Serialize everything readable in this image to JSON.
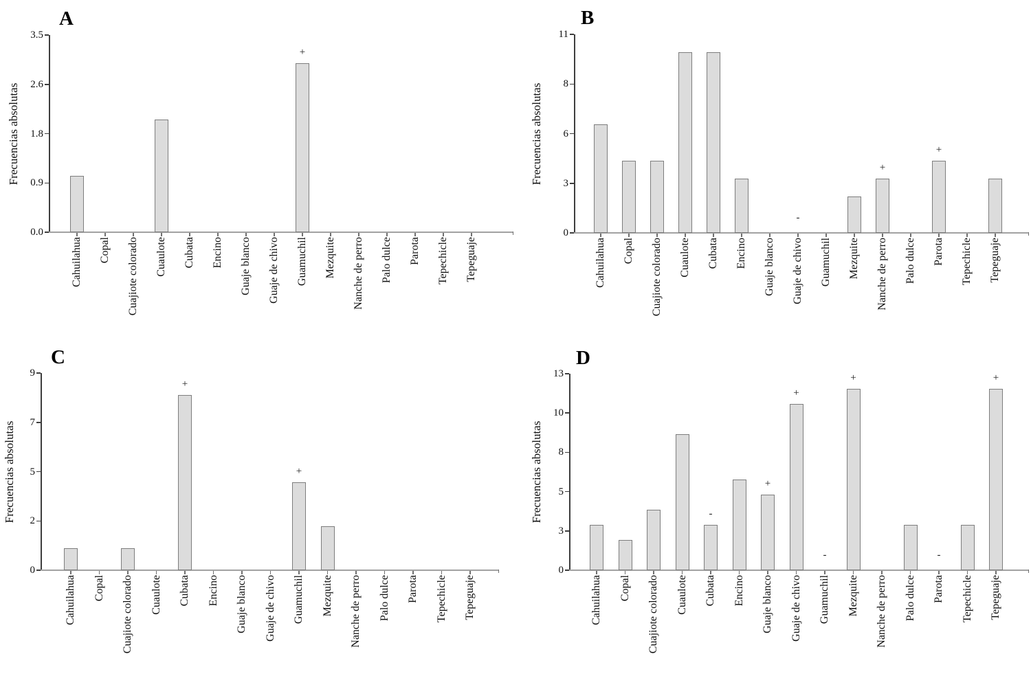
{
  "figure_ylabel": "Frecuencias absolutas",
  "colors": {
    "bar_fill": "#dcdcdc",
    "bar_border": "#7d7d7d",
    "baseline": "#a2a2a2",
    "axis_line": "#3d3d3d",
    "text": "#000000"
  },
  "chart_data": [
    {
      "type": "bar",
      "title": "A",
      "ylabel": "Frecuencias absolutas",
      "xlabel": "",
      "grid": false,
      "legend": null,
      "categories": [
        "Cahuilahua",
        "Copal",
        "Cuajiote colorado",
        "Cuaulote",
        "Cubata",
        "Encino",
        "Guaje blanco",
        "Guaje de chivo",
        "Guamuchil",
        "Mezquite",
        "Nanche de perro",
        "Palo dulce",
        "Parota",
        "Tepechicle",
        "Tepeguaje"
      ],
      "values": [
        1,
        0,
        0,
        2,
        0,
        0,
        0,
        0,
        3,
        0,
        0,
        0,
        0,
        0,
        0
      ],
      "markers": [
        "",
        "",
        "",
        "",
        "",
        "",
        "",
        "",
        "+",
        "",
        "",
        "",
        "",
        "",
        ""
      ],
      "ytick_labels": [
        "0.0",
        "0.9",
        "1.8",
        "2.6",
        "3.5"
      ],
      "ylim": [
        0,
        3.5
      ]
    },
    {
      "type": "bar",
      "title": "B",
      "ylabel": "Frecuencias absolutas",
      "xlabel": "",
      "grid": false,
      "legend": null,
      "categories": [
        "Cahuilahua",
        "Copal",
        "Cuajiote colorado",
        "Cuaulote",
        "Cubata",
        "Encino",
        "Guaje blanco",
        "Guaje de chivo",
        "Guamuchil",
        "Mezquite",
        "Nanche de perro",
        "Palo dulce",
        "Parota",
        "Tepechicle",
        "Tepeguaje"
      ],
      "values": [
        6,
        4,
        4,
        10,
        10,
        3,
        0,
        0,
        0,
        2,
        3,
        0,
        4,
        0,
        3
      ],
      "markers": [
        "",
        "",
        "",
        "",
        "",
        "",
        "",
        "-",
        "",
        "",
        "+",
        "",
        "+",
        "",
        ""
      ],
      "ytick_labels": [
        "0",
        "3",
        "6",
        "8",
        "11"
      ],
      "ylim": [
        0,
        11
      ]
    },
    {
      "type": "bar",
      "title": "C",
      "ylabel": "Frecuencias absolutas",
      "xlabel": "",
      "grid": false,
      "legend": null,
      "categories": [
        "Cahuilahua",
        "Copal",
        "Cuajiote colorado",
        "Cuaulote",
        "Cubata",
        "Encino",
        "Guaje blanco",
        "Guaje de chivo",
        "Guamuchil",
        "Mezquite",
        "Nanche de perro",
        "Palo dulce",
        "Parota",
        "Tepechicle",
        "Tepeguaje"
      ],
      "values": [
        1,
        0,
        1,
        0,
        8,
        0,
        0,
        0,
        4,
        2,
        0,
        0,
        0,
        0,
        0
      ],
      "markers": [
        "",
        "",
        "",
        "",
        "+",
        "",
        "",
        "",
        "+",
        "",
        "",
        "",
        "",
        "",
        ""
      ],
      "ytick_labels": [
        "0",
        "2",
        "5",
        "7",
        "9"
      ],
      "ylim": [
        0,
        9
      ]
    },
    {
      "type": "bar",
      "title": "D",
      "ylabel": "Frecuencias absolutas",
      "xlabel": "",
      "grid": false,
      "legend": null,
      "categories": [
        "Cahuilahua",
        "Copal",
        "Cuajiote colorado",
        "Cuaulote",
        "Cubata",
        "Encino",
        "Guaje blanco",
        "Guaje de chivo",
        "Guamuchil",
        "Mezquite",
        "Nanche de perro",
        "Palo dulce",
        "Parota",
        "Tepechicle",
        "Tepeguaje"
      ],
      "values": [
        3,
        2,
        4,
        9,
        3,
        6,
        5,
        11,
        0,
        12,
        0,
        3,
        0,
        3,
        12
      ],
      "markers": [
        "",
        "",
        "",
        "",
        "-",
        "",
        "+",
        "+",
        "-",
        "+",
        "",
        "",
        "-",
        "",
        "+"
      ],
      "ytick_labels": [
        "0",
        "3",
        "5",
        "8",
        "10",
        "13"
      ],
      "ylim": [
        0,
        13
      ]
    }
  ]
}
